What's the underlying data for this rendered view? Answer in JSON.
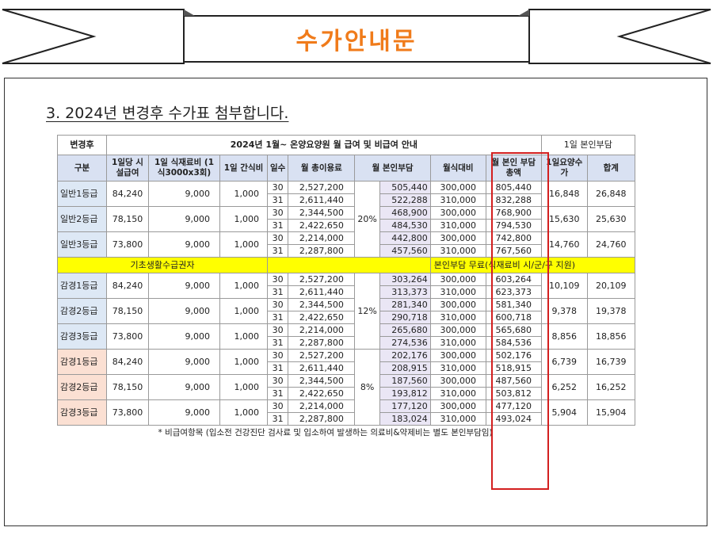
{
  "banner": {
    "title": "수가안내문"
  },
  "heading": "3. 2024년 변경후 수가표 첨부합니다.",
  "table": {
    "corner_label": "변경후",
    "title": "2024년 1월~ 온양요양원 월 급여 및 비급여 안내",
    "daily_copay_title": "1일 본인부담",
    "columns": [
      "구분",
      "1일당 시설급여",
      "1일 식재료비 (1식3000x3회)",
      "1일 간식비",
      "일수",
      "월 총이용료",
      "월 본인부담",
      "월식대비",
      "월 본인 부담총액",
      "1일요양수가",
      "합계"
    ],
    "basic_label": "기초생활수급권자",
    "basic_note": "본인부담 무료(식재료비 시/군/구 지원)",
    "footnote": "* 비급여항목 (입소전 건강진단 검사료 및 입소하여 발생하는 의료비&약제비는 별도 본인부담임)",
    "groups": [
      {
        "rate": "20%",
        "grades": [
          {
            "name": "일반1등급",
            "facility": "84,240",
            "food": "9,000",
            "snack": "1,000",
            "daily_care": "16,848",
            "total": "26,848",
            "rows": [
              {
                "days": "30",
                "monthly_total": "2,527,200",
                "copay": "505,440",
                "meal": "300,000",
                "sum": "805,440"
              },
              {
                "days": "31",
                "monthly_total": "2,611,440",
                "copay": "522,288",
                "meal": "310,000",
                "sum": "832,288"
              }
            ]
          },
          {
            "name": "일반2등급",
            "facility": "78,150",
            "food": "9,000",
            "snack": "1,000",
            "daily_care": "15,630",
            "total": "25,630",
            "rows": [
              {
                "days": "30",
                "monthly_total": "2,344,500",
                "copay": "468,900",
                "meal": "300,000",
                "sum": "768,900"
              },
              {
                "days": "31",
                "monthly_total": "2,422,650",
                "copay": "484,530",
                "meal": "310,000",
                "sum": "794,530"
              }
            ]
          },
          {
            "name": "일반3등급",
            "facility": "73,800",
            "food": "9,000",
            "snack": "1,000",
            "daily_care": "14,760",
            "total": "24,760",
            "rows": [
              {
                "days": "30",
                "monthly_total": "2,214,000",
                "copay": "442,800",
                "meal": "300,000",
                "sum": "742,800"
              },
              {
                "days": "31",
                "monthly_total": "2,287,800",
                "copay": "457,560",
                "meal": "310,000",
                "sum": "767,560"
              }
            ]
          }
        ]
      },
      {
        "rate": "12%",
        "grades": [
          {
            "name": "감경1등급",
            "facility": "84,240",
            "food": "9,000",
            "snack": "1,000",
            "daily_care": "10,109",
            "total": "20,109",
            "rows": [
              {
                "days": "30",
                "monthly_total": "2,527,200",
                "copay": "303,264",
                "meal": "300,000",
                "sum": "603,264"
              },
              {
                "days": "31",
                "monthly_total": "2,611,440",
                "copay": "313,373",
                "meal": "310,000",
                "sum": "623,373"
              }
            ]
          },
          {
            "name": "감경2등급",
            "facility": "78,150",
            "food": "9,000",
            "snack": "1,000",
            "daily_care": "9,378",
            "total": "19,378",
            "rows": [
              {
                "days": "30",
                "monthly_total": "2,344,500",
                "copay": "281,340",
                "meal": "300,000",
                "sum": "581,340"
              },
              {
                "days": "31",
                "monthly_total": "2,422,650",
                "copay": "290,718",
                "meal": "310,000",
                "sum": "600,718"
              }
            ]
          },
          {
            "name": "감경3등급",
            "facility": "73,800",
            "food": "9,000",
            "snack": "1,000",
            "daily_care": "8,856",
            "total": "18,856",
            "rows": [
              {
                "days": "30",
                "monthly_total": "2,214,000",
                "copay": "265,680",
                "meal": "300,000",
                "sum": "565,680"
              },
              {
                "days": "31",
                "monthly_total": "2,287,800",
                "copay": "274,536",
                "meal": "310,000",
                "sum": "584,536"
              }
            ]
          }
        ]
      },
      {
        "rate": "8%",
        "grades": [
          {
            "name": "감경1등급",
            "facility": "84,240",
            "food": "9,000",
            "snack": "1,000",
            "daily_care": "6,739",
            "total": "16,739",
            "rows": [
              {
                "days": "30",
                "monthly_total": "2,527,200",
                "copay": "202,176",
                "meal": "300,000",
                "sum": "502,176"
              },
              {
                "days": "31",
                "monthly_total": "2,611,440",
                "copay": "208,915",
                "meal": "310,000",
                "sum": "518,915"
              }
            ]
          },
          {
            "name": "감경2등급",
            "facility": "78,150",
            "food": "9,000",
            "snack": "1,000",
            "daily_care": "6,252",
            "total": "16,252",
            "rows": [
              {
                "days": "30",
                "monthly_total": "2,344,500",
                "copay": "187,560",
                "meal": "300,000",
                "sum": "487,560"
              },
              {
                "days": "31",
                "monthly_total": "2,422,650",
                "copay": "193,812",
                "meal": "310,000",
                "sum": "503,812"
              }
            ]
          },
          {
            "name": "감경3등급",
            "facility": "73,800",
            "food": "9,000",
            "snack": "1,000",
            "daily_care": "5,904",
            "total": "15,904",
            "rows": [
              {
                "days": "30",
                "monthly_total": "2,214,000",
                "copay": "177,120",
                "meal": "300,000",
                "sum": "477,120"
              },
              {
                "days": "31",
                "monthly_total": "2,287,800",
                "copay": "183,024",
                "meal": "310,000",
                "sum": "493,024"
              }
            ]
          }
        ]
      }
    ]
  }
}
